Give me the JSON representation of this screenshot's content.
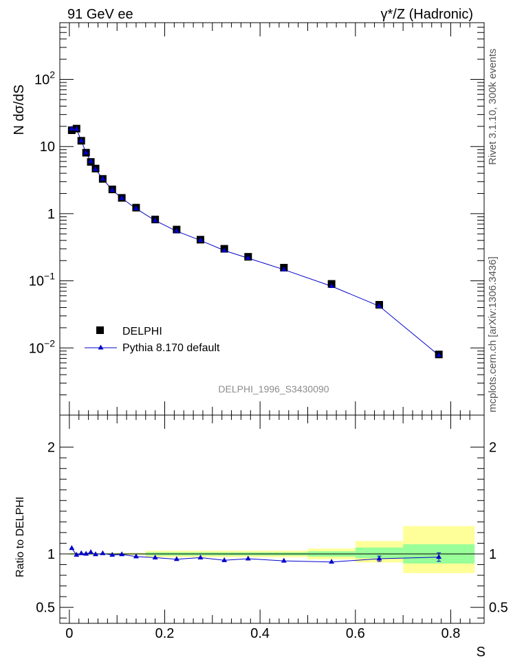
{
  "header": {
    "left_label": "91 GeV ee",
    "right_label": "γ*/Z (Hadronic)"
  },
  "side_labels": {
    "rivet": "Rivet 3.1.10, 300k events",
    "source": "mcplots.cern.ch [arXiv:1306.3436]"
  },
  "watermark": "DELPHI_1996_S3430090",
  "colors": {
    "data": "#000000",
    "mc": "#0000cc",
    "band_inner": "#99ff99",
    "band_outer": "#ffff99"
  },
  "chart_data": [
    {
      "type": "scatter",
      "xlabel": "S",
      "ylabel": "N dσ/dS",
      "xlim": [
        -0.02,
        0.87
      ],
      "ylim": [
        0.001,
        700
      ],
      "yscale": "log",
      "y_tick_labels": [
        {
          "value": 0.01,
          "base": "10",
          "exp": "−2"
        },
        {
          "value": 0.1,
          "base": "10",
          "exp": "−1"
        },
        {
          "value": 1,
          "base": "1",
          "exp": ""
        },
        {
          "value": 10,
          "base": "10",
          "exp": ""
        },
        {
          "value": 100,
          "base": "10",
          "exp": "2"
        }
      ],
      "legend_position": "bottom-left",
      "series": [
        {
          "name": "DELPHI",
          "marker": "square",
          "x": [
            0.005,
            0.015,
            0.025,
            0.035,
            0.045,
            0.055,
            0.07,
            0.09,
            0.11,
            0.14,
            0.18,
            0.225,
            0.275,
            0.325,
            0.375,
            0.45,
            0.55,
            0.65,
            0.775
          ],
          "y": [
            17.5,
            18.5,
            12.2,
            8.1,
            5.9,
            4.7,
            3.3,
            2.3,
            1.72,
            1.23,
            0.82,
            0.58,
            0.41,
            0.3,
            0.228,
            0.157,
            0.09,
            0.044,
            0.008
          ]
        },
        {
          "name": "Pythia 8.170 default",
          "marker": "triangle",
          "x": [
            0.005,
            0.015,
            0.025,
            0.035,
            0.045,
            0.055,
            0.07,
            0.09,
            0.11,
            0.14,
            0.18,
            0.225,
            0.275,
            0.325,
            0.375,
            0.45,
            0.55,
            0.65,
            0.775
          ],
          "y": [
            18.4,
            18.2,
            12.2,
            8.1,
            6.0,
            4.6,
            3.3,
            2.25,
            1.7,
            1.19,
            0.79,
            0.55,
            0.4,
            0.283,
            0.218,
            0.147,
            0.083,
            0.042,
            0.0078
          ]
        }
      ]
    },
    {
      "type": "scatter",
      "xlabel": "S",
      "ylabel": "Ratio to DELPHI",
      "xlim": [
        -0.02,
        0.87
      ],
      "ylim": [
        0.35,
        2.3
      ],
      "x_tick_labels": [
        0,
        0.2,
        0.4,
        0.6,
        0.8
      ],
      "y_tick_labels": [
        0.5,
        1,
        2
      ],
      "bands": [
        {
          "x0": 0.0,
          "x1": 0.16,
          "inner": [
            0.995,
            1.005
          ],
          "outer": [
            0.99,
            1.01
          ]
        },
        {
          "x0": 0.16,
          "x1": 0.5,
          "inner": [
            0.985,
            1.015
          ],
          "outer": [
            0.97,
            1.03
          ]
        },
        {
          "x0": 0.5,
          "x1": 0.6,
          "inner": [
            0.975,
            1.025
          ],
          "outer": [
            0.95,
            1.05
          ]
        },
        {
          "x0": 0.6,
          "x1": 0.7,
          "inner": [
            0.96,
            1.06
          ],
          "outer": [
            0.92,
            1.12
          ]
        },
        {
          "x0": 0.7,
          "x1": 0.85,
          "inner": [
            0.91,
            1.09
          ],
          "outer": [
            0.82,
            1.26
          ]
        }
      ],
      "series": [
        {
          "name": "Pythia 8.170 default",
          "marker": "triangle",
          "x": [
            0.005,
            0.015,
            0.025,
            0.035,
            0.045,
            0.055,
            0.07,
            0.09,
            0.11,
            0.14,
            0.18,
            0.225,
            0.275,
            0.325,
            0.375,
            0.45,
            0.55,
            0.65,
            0.775
          ],
          "y": [
            1.053,
            0.99,
            1.005,
            1.0,
            1.015,
            0.995,
            1.005,
            0.99,
            0.995,
            0.975,
            0.965,
            0.95,
            0.965,
            0.94,
            0.955,
            0.935,
            0.925,
            0.955,
            0.97
          ],
          "yerr": [
            0,
            0,
            0,
            0,
            0,
            0,
            0,
            0,
            0,
            0,
            0,
            0,
            0,
            0,
            0,
            0,
            0,
            0.025,
            0.04
          ]
        }
      ]
    }
  ]
}
